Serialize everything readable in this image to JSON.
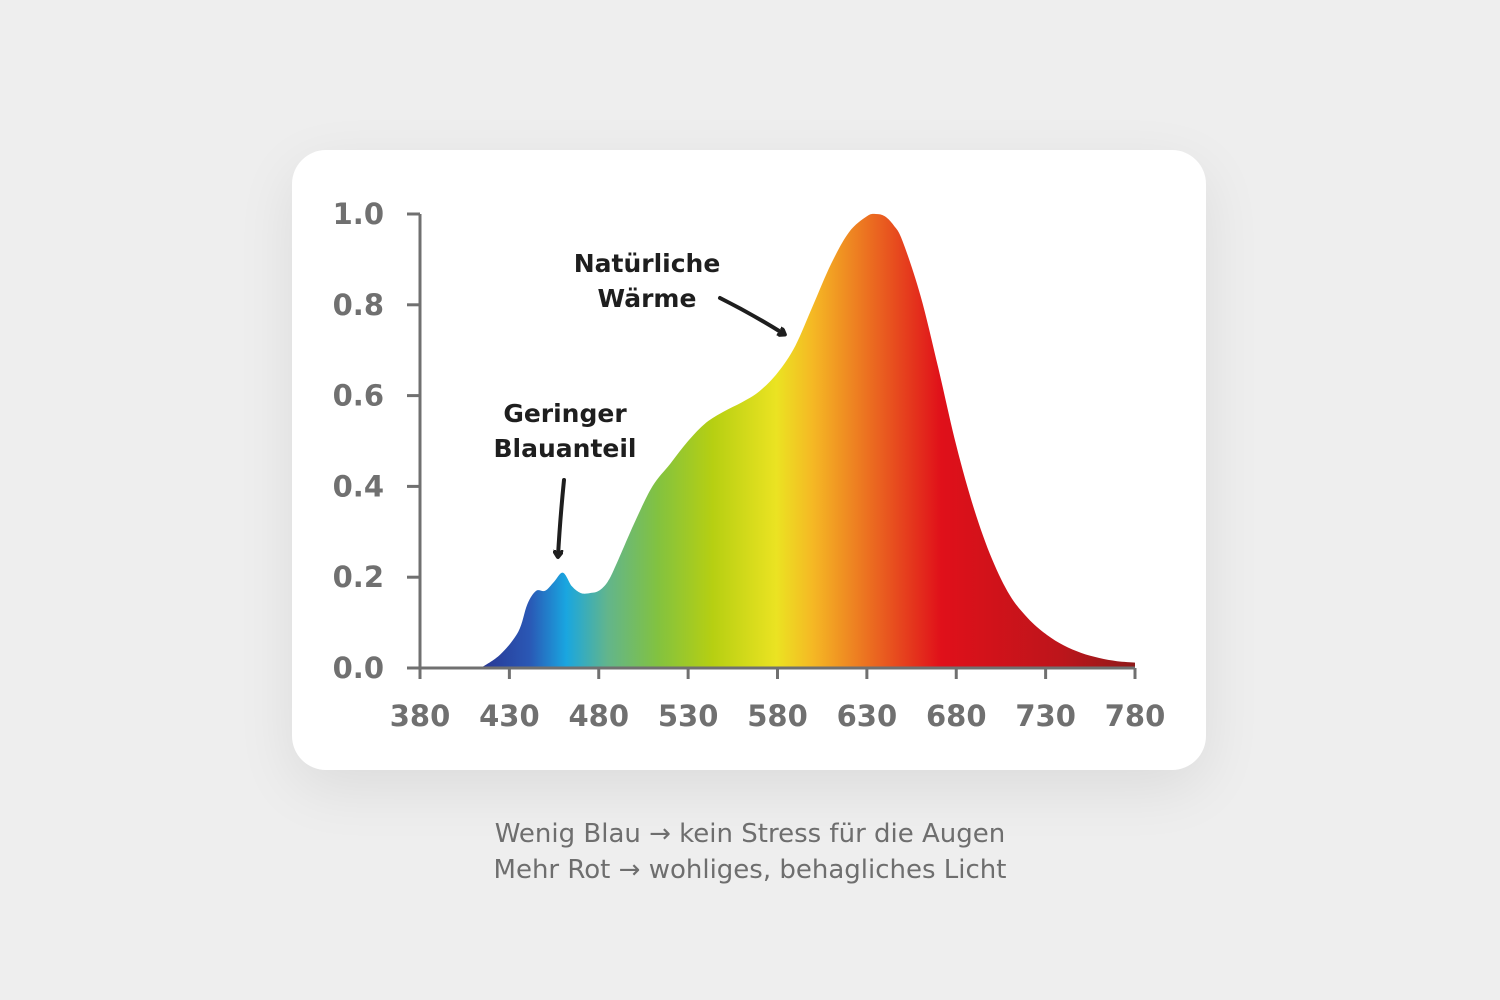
{
  "chart_data": {
    "type": "area",
    "title": "",
    "xlabel": "",
    "ylabel": "",
    "xlim": [
      380,
      780
    ],
    "ylim": [
      0,
      1.0
    ],
    "x_ticks": [
      "380",
      "430",
      "480",
      "530",
      "580",
      "630",
      "680",
      "730",
      "780"
    ],
    "y_ticks": [
      "0.0",
      "0.2",
      "0.4",
      "0.6",
      "0.8",
      "1.0"
    ],
    "grid": false,
    "fill": "visible-spectrum gradient",
    "series": [
      {
        "x": [
          414,
          425,
          435,
          440,
          445,
          450,
          455,
          460,
          465,
          470,
          475,
          480,
          485,
          490,
          500,
          510,
          520,
          530,
          540,
          550,
          560,
          570,
          580,
          590,
          600,
          610,
          620,
          630,
          635,
          640,
          645,
          650,
          660,
          670,
          680,
          690,
          700,
          710,
          720,
          730,
          740,
          750,
          760,
          770,
          780
        ],
        "y": [
          0.0,
          0.03,
          0.08,
          0.14,
          0.17,
          0.17,
          0.19,
          0.21,
          0.18,
          0.165,
          0.165,
          0.17,
          0.19,
          0.23,
          0.32,
          0.4,
          0.45,
          0.5,
          0.54,
          0.565,
          0.585,
          0.61,
          0.65,
          0.71,
          0.8,
          0.89,
          0.96,
          0.995,
          1.0,
          0.995,
          0.975,
          0.94,
          0.82,
          0.66,
          0.49,
          0.35,
          0.24,
          0.16,
          0.11,
          0.075,
          0.05,
          0.033,
          0.022,
          0.015,
          0.012
        ]
      }
    ],
    "annotations": [
      {
        "label": [
          "Natürliche",
          "Wärme"
        ],
        "points_to_x": 590
      },
      {
        "label": [
          "Geringer",
          "Blauanteil"
        ],
        "points_to_x": 460
      }
    ]
  },
  "caption": {
    "line1": "Wenig Blau → kein Stress für die Augen",
    "line2": "Mehr Rot → wohliges, behagliches Licht"
  },
  "colors": {
    "axis": "#707070",
    "annotation": "#1e1e1e",
    "card": "#ffffff",
    "background": "#eeeeee"
  }
}
